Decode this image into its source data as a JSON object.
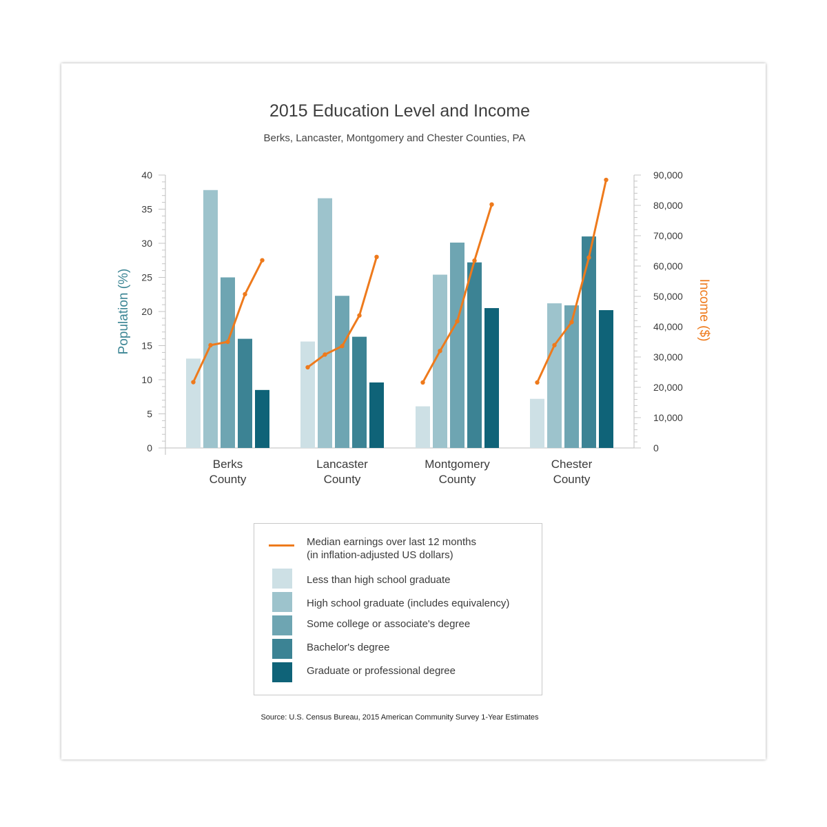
{
  "chart_data": {
    "type": "bar",
    "title": "2015 Education Level and Income",
    "subtitle": "Berks, Lancaster, Montgomery and Chester Counties, PA",
    "ylabel": "Population (%)",
    "y2label": "Income ($)",
    "ylim": [
      0,
      40
    ],
    "y2lim": [
      0,
      90000
    ],
    "yticks": [
      "0",
      "5",
      "10",
      "15",
      "20",
      "25",
      "30",
      "35",
      "40"
    ],
    "y2ticks": [
      "0",
      "10,000",
      "20,000",
      "30,000",
      "40,000",
      "50,000",
      "60,000",
      "70,000",
      "80,000",
      "90,000"
    ],
    "categories": [
      [
        "Berks",
        "County"
      ],
      [
        "Lancaster",
        "County"
      ],
      [
        "Montgomery",
        "County"
      ],
      [
        "Chester",
        "County"
      ]
    ],
    "series": [
      {
        "name": "Less than high school graduate",
        "color": "#cde0e5",
        "values": [
          13.1,
          15.6,
          6.1,
          7.2
        ]
      },
      {
        "name": "High school graduate (includes equivalency)",
        "color": "#9dc3cc",
        "values": [
          37.8,
          36.6,
          25.4,
          21.2
        ]
      },
      {
        "name": "Some college or associate's degree",
        "color": "#6ea5b2",
        "values": [
          25.0,
          22.3,
          30.1,
          20.9
        ]
      },
      {
        "name": "Bachelor's degree",
        "color": "#3c8394",
        "values": [
          16.0,
          16.3,
          27.2,
          31.0
        ]
      },
      {
        "name": "Graduate or professional degree",
        "color": "#0f6378",
        "values": [
          8.5,
          9.6,
          20.5,
          20.2
        ]
      }
    ],
    "line": {
      "name": "Median earnings over last 12 months",
      "name_line2": "(in inflation-adjusted US dollars)",
      "color": "#ee7a1c",
      "values": [
        [
          21700,
          33900,
          35000,
          50700,
          61900
        ],
        [
          26600,
          30800,
          33600,
          43700,
          63000
        ],
        [
          21600,
          32000,
          41800,
          61800,
          80300
        ],
        [
          21600,
          33900,
          41500,
          62800,
          88400
        ]
      ]
    },
    "grid": false,
    "legend_position": "bottom"
  },
  "source": "Source: U.S. Census Bureau, 2015 American Community Survey 1-Year Estimates"
}
